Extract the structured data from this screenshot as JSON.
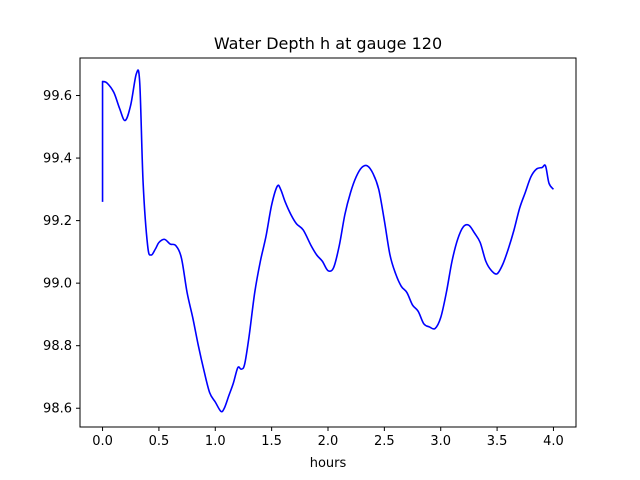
{
  "chart_data": {
    "type": "line",
    "title": "Water Depth h at gauge 120",
    "xlabel": "hours",
    "ylabel": "",
    "xlim": [
      -0.2,
      4.2
    ],
    "ylim": [
      98.54,
      99.72
    ],
    "xticks": [
      0.0,
      0.5,
      1.0,
      1.5,
      2.0,
      2.5,
      3.0,
      3.5,
      4.0
    ],
    "xtick_labels": [
      "0.0",
      "0.5",
      "1.0",
      "1.5",
      "2.0",
      "2.5",
      "3.0",
      "3.5",
      "4.0"
    ],
    "yticks": [
      98.6,
      98.8,
      99.0,
      99.2,
      99.4,
      99.6
    ],
    "ytick_labels": [
      "98.6",
      "98.8",
      "99.0",
      "99.2",
      "99.4",
      "99.6"
    ],
    "grid": false,
    "series": [
      {
        "color": "#0000ff",
        "x": [
          0.0,
          0.0,
          0.04,
          0.1,
          0.15,
          0.2,
          0.25,
          0.3,
          0.33,
          0.36,
          0.4,
          0.43,
          0.47,
          0.5,
          0.55,
          0.6,
          0.65,
          0.7,
          0.75,
          0.8,
          0.85,
          0.9,
          0.95,
          1.0,
          1.05,
          1.08,
          1.12,
          1.16,
          1.2,
          1.23,
          1.26,
          1.3,
          1.35,
          1.4,
          1.45,
          1.5,
          1.55,
          1.58,
          1.62,
          1.67,
          1.72,
          1.78,
          1.85,
          1.9,
          1.95,
          2.0,
          2.05,
          2.1,
          2.15,
          2.2,
          2.25,
          2.3,
          2.35,
          2.4,
          2.45,
          2.5,
          2.55,
          2.6,
          2.65,
          2.7,
          2.75,
          2.8,
          2.85,
          2.9,
          2.95,
          3.0,
          3.05,
          3.1,
          3.15,
          3.2,
          3.25,
          3.3,
          3.35,
          3.4,
          3.45,
          3.5,
          3.55,
          3.6,
          3.65,
          3.7,
          3.75,
          3.8,
          3.85,
          3.9,
          3.93,
          3.96,
          4.0
        ],
        "y": [
          99.26,
          99.645,
          99.64,
          99.61,
          99.56,
          99.52,
          99.57,
          99.67,
          99.64,
          99.32,
          99.12,
          99.09,
          99.11,
          99.13,
          99.14,
          99.125,
          99.12,
          99.08,
          98.97,
          98.89,
          98.8,
          98.72,
          98.65,
          98.62,
          98.59,
          98.6,
          98.64,
          98.68,
          98.73,
          98.725,
          98.74,
          98.83,
          98.97,
          99.07,
          99.15,
          99.25,
          99.31,
          99.3,
          99.26,
          99.22,
          99.19,
          99.17,
          99.12,
          99.09,
          99.07,
          99.04,
          99.05,
          99.12,
          99.22,
          99.29,
          99.34,
          99.37,
          99.375,
          99.35,
          99.3,
          99.2,
          99.09,
          99.03,
          98.99,
          98.97,
          98.93,
          98.91,
          98.87,
          98.86,
          98.855,
          98.89,
          98.97,
          99.07,
          99.14,
          99.18,
          99.185,
          99.16,
          99.13,
          99.07,
          99.04,
          99.03,
          99.06,
          99.11,
          99.17,
          99.24,
          99.29,
          99.34,
          99.365,
          99.37,
          99.375,
          99.32,
          99.3
        ]
      }
    ]
  }
}
